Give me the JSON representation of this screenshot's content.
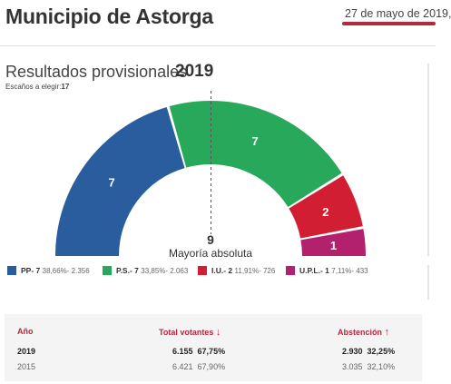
{
  "header": {
    "title": "Municipio de Astorga",
    "date": "27 de mayo de 2019,"
  },
  "results": {
    "title": "Resultados provisionales",
    "year": "2019",
    "seats_label": "Escaños a elegir:",
    "seats_value": "17"
  },
  "chart_data": {
    "type": "pie",
    "style": "half-donut (parliament)",
    "total_seats": 17,
    "slices": [
      {
        "label": "PP",
        "value": 7,
        "color": "#2a5d9e"
      },
      {
        "label": "P.S.",
        "value": 7,
        "color": "#27a85a"
      },
      {
        "label": "I.U.",
        "value": 2,
        "color": "#d11e33"
      },
      {
        "label": "U.P.L.",
        "value": 1,
        "color": "#b3206e"
      }
    ]
  },
  "majority": {
    "value": "9",
    "label": "Mayoría absoluta"
  },
  "legend": [
    {
      "name": "PP- 7",
      "detail": "38,66%- 2.356",
      "color": "#2a5d9e"
    },
    {
      "name": "P.S.- 7",
      "detail": "33,85%- 2.063",
      "color": "#27a85a"
    },
    {
      "name": "I.U.- 2",
      "detail": "11,91%- 726",
      "color": "#d11e33"
    },
    {
      "name": "U.P.L.- 1",
      "detail": "7,11%- 433",
      "color": "#b3206e"
    }
  ],
  "table": {
    "headers": {
      "year": "Año",
      "votes": "Total votantes",
      "abstention": "Abstención"
    },
    "sort_icons": {
      "votes": "↓",
      "abstention": "↑"
    },
    "rows": [
      {
        "year": "2019",
        "votes": "6.155",
        "votes_pct": "67,75%",
        "abst": "2.930",
        "abst_pct": "32,25%"
      },
      {
        "year": "2015",
        "votes": "6.421",
        "votes_pct": "67,90%",
        "abst": "3.035",
        "abst_pct": "32,10%"
      }
    ]
  }
}
